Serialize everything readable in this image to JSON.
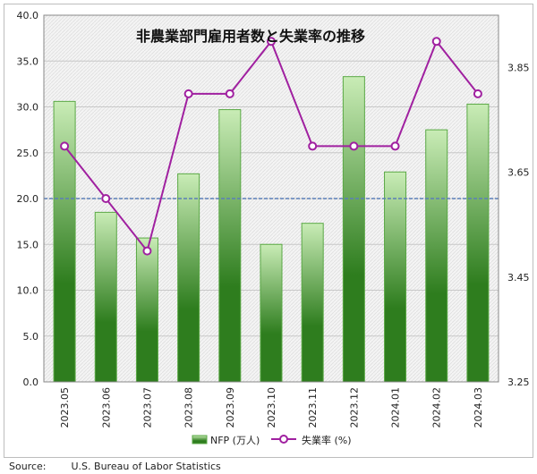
{
  "source": {
    "label": "Source:",
    "text": "U.S. Bureau of Labor Statistics"
  },
  "colors": {
    "bar_dark": "#2e7d1e",
    "bar_light": "#c9ecb6",
    "bar_border": "#5aa845",
    "line": "#a020a0",
    "reference_line": "#5b7fb8",
    "grid": "#c8c8c8"
  },
  "chart_data": {
    "type": "bar",
    "title": "非農業部門雇用者数と失業率の推移",
    "categories": [
      "2023.05",
      "2023.06",
      "2023.07",
      "2023.08",
      "2023.09",
      "2023.10",
      "2023.11",
      "2023.12",
      "2024.01",
      "2024.02",
      "2024.03"
    ],
    "series": [
      {
        "name": "NFP (万人)",
        "type": "bar",
        "axis": "left",
        "values": [
          30.6,
          18.5,
          15.7,
          22.7,
          29.7,
          15.0,
          17.3,
          33.3,
          22.9,
          27.5,
          30.3
        ]
      },
      {
        "name": "失業率 (%)",
        "type": "line",
        "axis": "right",
        "values": [
          3.7,
          3.6,
          3.5,
          3.8,
          3.8,
          3.9,
          3.7,
          3.7,
          3.7,
          3.9,
          3.8
        ]
      }
    ],
    "left_axis": {
      "ylim": [
        0,
        40
      ],
      "ticks": [
        "0.0",
        "5.0",
        "10.0",
        "15.0",
        "20.0",
        "25.0",
        "30.0",
        "35.0",
        "40.0"
      ]
    },
    "right_axis": {
      "ylim": [
        3.25,
        3.95
      ],
      "ticks": [
        "3.25",
        "3.45",
        "3.65",
        "3.85"
      ]
    },
    "reference_line": {
      "axis": "left",
      "value": 20.0
    },
    "grid": true,
    "legend": "bottom-center"
  }
}
